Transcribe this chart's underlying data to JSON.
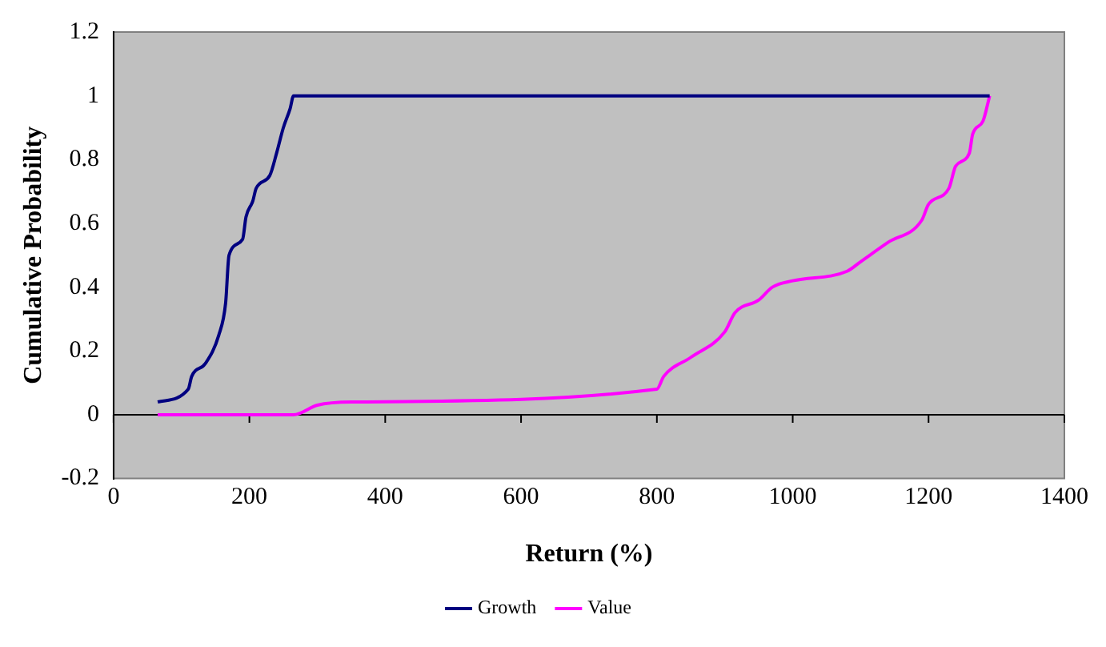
{
  "chart_data": {
    "type": "line",
    "xlabel": "Return (%)",
    "ylabel": "Cumulative Probability",
    "xlim": [
      0,
      1400
    ],
    "xticks": [
      0,
      200,
      400,
      600,
      800,
      1000,
      1200,
      1400
    ],
    "ylim": [
      -0.2,
      1.2
    ],
    "yticks": [
      -0.2,
      0,
      0.2,
      0.4,
      0.6,
      0.8,
      1,
      1.2
    ],
    "grid": false,
    "legend": "bottom",
    "marker": "none",
    "line_style": "solid",
    "ref_lines": [
      {
        "axis": "y",
        "value": 0,
        "color": "#000000"
      }
    ],
    "series": [
      {
        "name": "Growth",
        "color": "#000080",
        "x": [
          65,
          110,
          115,
          135,
          155,
          165,
          170,
          190,
          195,
          205,
          210,
          230,
          240,
          250,
          260,
          265,
          1290
        ],
        "values": [
          0.04,
          0.08,
          0.12,
          0.16,
          0.25,
          0.35,
          0.5,
          0.55,
          0.62,
          0.67,
          0.71,
          0.75,
          0.82,
          0.9,
          0.96,
          1.0,
          1.0
        ]
      },
      {
        "name": "Value",
        "color": "#ff00ff",
        "x": [
          65,
          265,
          300,
          350,
          800,
          810,
          850,
          900,
          915,
          950,
          970,
          1000,
          1080,
          1100,
          1140,
          1190,
          1200,
          1230,
          1240,
          1260,
          1265,
          1280,
          1290
        ],
        "values": [
          0,
          0,
          0.03,
          0.04,
          0.08,
          0.12,
          0.18,
          0.26,
          0.32,
          0.36,
          0.4,
          0.42,
          0.45,
          0.48,
          0.54,
          0.61,
          0.66,
          0.71,
          0.78,
          0.82,
          0.88,
          0.92,
          1.0
        ]
      }
    ]
  }
}
